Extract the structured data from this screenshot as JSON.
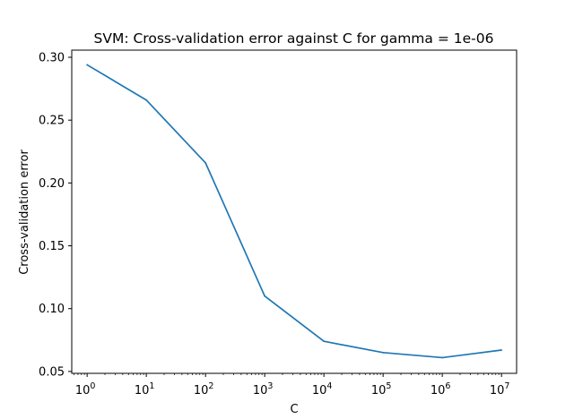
{
  "chart_data": {
    "type": "line",
    "title": "SVM: Cross-validation error against C for gamma = 1e-06",
    "xlabel": "C",
    "ylabel": "Cross-validation error",
    "xscale": "log",
    "xlim": [
      0.55,
      18000000
    ],
    "ylim": [
      0.0485,
      0.3057
    ],
    "grid": false,
    "legend": "none",
    "line_color": "#1f77b4",
    "x_ticks": [
      {
        "value": 1,
        "base": "10",
        "exp": "0"
      },
      {
        "value": 10,
        "base": "10",
        "exp": "1"
      },
      {
        "value": 100,
        "base": "10",
        "exp": "2"
      },
      {
        "value": 1000,
        "base": "10",
        "exp": "3"
      },
      {
        "value": 10000,
        "base": "10",
        "exp": "4"
      },
      {
        "value": 100000,
        "base": "10",
        "exp": "5"
      },
      {
        "value": 1000000,
        "base": "10",
        "exp": "6"
      },
      {
        "value": 10000000,
        "base": "10",
        "exp": "7"
      }
    ],
    "y_ticks": [
      {
        "value": 0.05,
        "label": "0.05"
      },
      {
        "value": 0.1,
        "label": "0.10"
      },
      {
        "value": 0.15,
        "label": "0.15"
      },
      {
        "value": 0.2,
        "label": "0.20"
      },
      {
        "value": 0.25,
        "label": "0.25"
      },
      {
        "value": 0.3,
        "label": "0.30"
      }
    ],
    "series": [
      {
        "x": [
          1,
          10,
          100,
          1000,
          10000,
          100000,
          1000000,
          10000000
        ],
        "y": [
          0.294,
          0.266,
          0.216,
          0.11,
          0.074,
          0.065,
          0.061,
          0.067
        ]
      }
    ]
  }
}
